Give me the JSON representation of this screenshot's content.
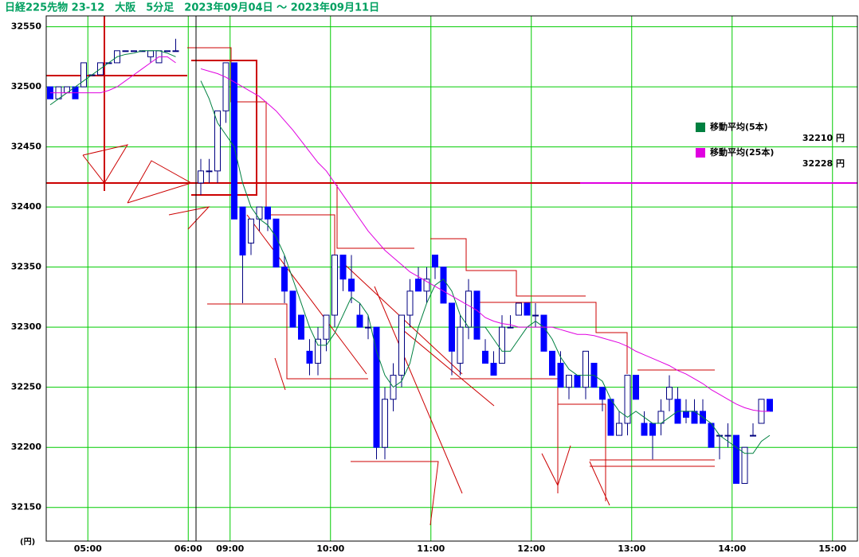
{
  "chart_data": {
    "type": "candlestick",
    "title": "日経225先物 23-12　大阪　5分足　2023年09月04日 ～ 2023年09月11日",
    "y_unit_label": "(円)",
    "categories": [
      null,
      null,
      null,
      null,
      "05:00",
      null,
      null,
      null,
      null,
      null,
      null,
      null,
      null,
      null,
      null,
      null,
      "06:00",
      null,
      null,
      null,
      null,
      "09:00",
      null,
      null,
      null,
      null,
      null,
      null,
      null,
      null,
      null,
      null,
      null,
      "10:00",
      null,
      null,
      null,
      null,
      null,
      null,
      null,
      null,
      null,
      null,
      null,
      "11:00",
      null,
      null,
      null,
      null,
      null,
      null,
      null,
      null,
      null,
      null,
      null,
      "12:00",
      null,
      null,
      null,
      null,
      null,
      null,
      null,
      null,
      null,
      null,
      null,
      "13:00",
      null,
      null,
      null,
      null,
      null,
      null,
      null,
      null,
      null,
      null,
      null,
      "14:00",
      null,
      null,
      null,
      null,
      null,
      null,
      null,
      null,
      null,
      null,
      null,
      "15:00",
      null,
      null,
      null
    ],
    "open": [
      32500,
      32490,
      32495,
      32500,
      32500,
      32510,
      32510,
      32520,
      32520,
      32530,
      32530,
      32530,
      32525,
      32520,
      32530,
      32530,
      null,
      null,
      32420,
      32430,
      32430,
      32480,
      32520,
      32400,
      32370,
      32390,
      32400,
      32390,
      32350,
      32330,
      32310,
      32280,
      32270,
      32290,
      32310,
      32360,
      32340,
      32310,
      32300,
      32300,
      32200,
      32240,
      32260,
      32310,
      32340,
      32330,
      32360,
      32350,
      32320,
      32270,
      32300,
      32330,
      32280,
      32270,
      32270,
      32300,
      32310,
      32320,
      32310,
      32310,
      32280,
      32270,
      32250,
      32260,
      32250,
      32270,
      32250,
      32240,
      32210,
      32220,
      32260,
      32220,
      32220,
      32220,
      32240,
      32240,
      32230,
      32230,
      32230,
      32220,
      32210,
      32210,
      32210,
      32170,
      32210,
      32220,
      32240,
      null,
      null,
      null,
      null,
      null,
      null,
      null,
      null,
      null,
      null
    ],
    "high": [
      32500,
      32500,
      32500,
      32500,
      32520,
      32510,
      32520,
      32520,
      32530,
      32530,
      32530,
      32530,
      32530,
      32530,
      32530,
      32540,
      null,
      null,
      32440,
      32440,
      32480,
      32520,
      32520,
      32400,
      32390,
      32400,
      32400,
      32390,
      32360,
      32330,
      32310,
      32290,
      32300,
      32310,
      32360,
      32360,
      32360,
      32320,
      32310,
      32300,
      32250,
      32270,
      32310,
      32340,
      32350,
      32350,
      32360,
      32350,
      32320,
      32310,
      32340,
      32330,
      32290,
      32280,
      32310,
      32310,
      32320,
      32320,
      32320,
      32310,
      32280,
      32280,
      32260,
      32260,
      32280,
      32270,
      32250,
      32240,
      32230,
      32260,
      32260,
      32230,
      32220,
      32240,
      32260,
      32250,
      32240,
      32240,
      32240,
      32220,
      32210,
      32220,
      32210,
      32200,
      32220,
      32240,
      32240,
      null,
      null,
      null,
      null,
      null,
      null,
      null,
      null,
      null,
      null
    ],
    "low": [
      32490,
      32490,
      32495,
      32490,
      32500,
      32510,
      32510,
      32520,
      32520,
      32530,
      32530,
      32530,
      32520,
      32520,
      32530,
      32530,
      null,
      null,
      32410,
      32420,
      32420,
      32470,
      32390,
      32320,
      32360,
      32380,
      32380,
      32350,
      32320,
      32300,
      32290,
      32260,
      32260,
      32280,
      32300,
      32330,
      32320,
      32300,
      32290,
      32190,
      32190,
      32230,
      32250,
      32300,
      32330,
      32320,
      32340,
      32320,
      32260,
      32260,
      32290,
      32290,
      32270,
      32260,
      32270,
      32300,
      32310,
      32310,
      32300,
      32280,
      32260,
      32250,
      32240,
      32250,
      32240,
      32250,
      32230,
      32210,
      32210,
      32210,
      32240,
      32210,
      32190,
      32210,
      32230,
      32220,
      32220,
      32220,
      32220,
      32200,
      32190,
      32200,
      32170,
      32170,
      32210,
      32220,
      32230,
      null,
      null,
      null,
      null,
      null,
      null,
      null,
      null,
      null,
      null
    ],
    "close": [
      32490,
      32500,
      32500,
      32490,
      32520,
      32510,
      32520,
      32520,
      32530,
      32530,
      32530,
      32530,
      32530,
      32530,
      32530,
      32530,
      null,
      null,
      32430,
      32430,
      32480,
      32520,
      32390,
      32360,
      32390,
      32400,
      32390,
      32350,
      32330,
      32300,
      32290,
      32270,
      32290,
      32310,
      32360,
      32340,
      32330,
      32300,
      32300,
      32200,
      32240,
      32260,
      32310,
      32330,
      32330,
      32340,
      32350,
      32320,
      32280,
      32300,
      32330,
      32290,
      32270,
      32260,
      32300,
      32300,
      32320,
      32310,
      32310,
      32280,
      32260,
      32250,
      32260,
      32250,
      32280,
      32250,
      32240,
      32210,
      32220,
      32260,
      32240,
      32210,
      32210,
      32230,
      32250,
      32220,
      32225,
      32220,
      32220,
      32200,
      32210,
      32210,
      32170,
      32200,
      32210,
      32240,
      32230,
      null,
      null,
      null,
      null,
      null,
      null,
      null,
      null,
      null,
      null
    ],
    "up_color": "#ffffff",
    "down_color": "#0000ff",
    "series": [
      {
        "name": "移動平均(5本)",
        "legend_value": "32210 円",
        "color": "#008040",
        "values": [
          32485,
          32490,
          32495,
          32500,
          32505,
          32510,
          32515,
          32520,
          32525,
          32527,
          32528,
          32530,
          32530,
          32530,
          32528,
          32525,
          null,
          null,
          32505,
          32490,
          32470,
          32460,
          32450,
          32420,
          32400,
          32390,
          32385,
          32375,
          32360,
          32340,
          32320,
          32300,
          32285,
          32285,
          32295,
          32310,
          32325,
          32320,
          32310,
          32280,
          32260,
          32250,
          32255,
          32270,
          32300,
          32320,
          32335,
          32340,
          32330,
          32310,
          32300,
          32300,
          32300,
          32290,
          32280,
          32280,
          32290,
          32300,
          32305,
          32300,
          32290,
          32275,
          32265,
          32260,
          32260,
          32260,
          32255,
          32240,
          32230,
          32225,
          32230,
          32225,
          32220,
          32220,
          32225,
          32230,
          32230,
          32230,
          32225,
          32220,
          32210,
          32205,
          32200,
          32195,
          32195,
          32205,
          32210,
          null,
          null,
          null,
          null,
          null,
          null,
          null,
          null,
          null,
          null
        ]
      },
      {
        "name": "移動平均(25本)",
        "legend_value": "32228 円",
        "color": "#e000e0",
        "values": [
          32495,
          32495,
          32495,
          32495,
          32495,
          32495,
          32495,
          32497,
          32500,
          32505,
          32510,
          32515,
          32520,
          32525,
          32525,
          32520,
          null,
          null,
          32515,
          32513,
          32511,
          32508,
          32504,
          32500,
          32496,
          32492,
          32486,
          32480,
          32472,
          32464,
          32455,
          32446,
          32437,
          32430,
          32420,
          32410,
          32400,
          32390,
          32380,
          32372,
          32364,
          32358,
          32352,
          32346,
          32342,
          32338,
          32334,
          32330,
          32326,
          32322,
          32318,
          32314,
          32308,
          32305,
          32303,
          32302,
          32300,
          32300,
          32300,
          32300,
          32300,
          32298,
          32296,
          32294,
          32294,
          32293,
          32291,
          32289,
          32287,
          32284,
          32280,
          32277,
          32274,
          32271,
          32268,
          32264,
          32261,
          32257,
          32253,
          32248,
          32244,
          32240,
          32236,
          32233,
          32231,
          32230,
          32230,
          null,
          null,
          null,
          null,
          null,
          null,
          null,
          null,
          null,
          null
        ]
      }
    ],
    "ylim": [
      32122,
      32559
    ],
    "yticks": [
      32150,
      32200,
      32250,
      32300,
      32350,
      32400,
      32450,
      32500,
      32550
    ],
    "grid": true
  }
}
